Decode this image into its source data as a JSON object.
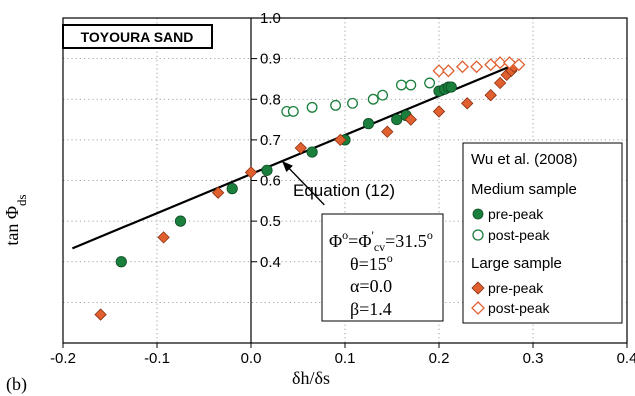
{
  "chart_data": {
    "type": "scatter",
    "title": "TOYOURA SAND",
    "xlabel": "δh/δs",
    "ylabel_main": "tan Φ",
    "ylabel_sub": "ds",
    "xlim": [
      -0.2,
      0.4
    ],
    "ylim": [
      0.2,
      1.0
    ],
    "x_ticks": [
      -0.2,
      -0.1,
      0.0,
      0.1,
      0.2,
      0.3,
      0.4
    ],
    "x_tick_labels": [
      "-0.2",
      "-0.1",
      "0.0",
      "0.1",
      "0.2",
      "0.3",
      "0.4"
    ],
    "y_ticks": [
      0.4,
      0.5,
      0.6,
      0.7,
      0.8,
      0.9,
      1.0
    ],
    "y_tick_labels": [
      "0.4",
      "0.5",
      "0.6",
      "0.7",
      "0.8",
      "0.9",
      "1.0"
    ],
    "grid": true,
    "panel_label": "(b)",
    "annotation": "Equation (12)",
    "annotation_arrow_tip": [
      0.033,
      0.648
    ],
    "annotation_arrow_tail": [
      0.078,
      0.54
    ],
    "line": {
      "name": "Equation (12)",
      "x": [
        -0.19,
        0.28
      ],
      "y": [
        0.433,
        0.885
      ]
    },
    "series": [
      {
        "name": "Medium pre-peak",
        "marker": "circle",
        "filled": true,
        "color": "#1a7f3c",
        "x": [
          -0.138,
          -0.075,
          -0.02,
          0.017,
          0.065,
          0.1,
          0.125,
          0.155,
          0.165,
          0.2,
          0.206,
          0.21,
          0.213
        ],
        "y": [
          0.4,
          0.5,
          0.58,
          0.625,
          0.67,
          0.7,
          0.74,
          0.75,
          0.76,
          0.82,
          0.825,
          0.83,
          0.83
        ]
      },
      {
        "name": "Medium post-peak",
        "marker": "circle",
        "filled": false,
        "color": "#1a7f3c",
        "x": [
          0.038,
          0.045,
          0.065,
          0.09,
          0.108,
          0.13,
          0.14,
          0.16,
          0.17,
          0.19
        ],
        "y": [
          0.77,
          0.77,
          0.78,
          0.785,
          0.79,
          0.8,
          0.81,
          0.835,
          0.835,
          0.84
        ]
      },
      {
        "name": "Large pre-peak",
        "marker": "diamond",
        "filled": true,
        "color": "#e06030",
        "x": [
          -0.16,
          -0.093,
          -0.035,
          0.0,
          0.053,
          0.095,
          0.145,
          0.17,
          0.2,
          0.23,
          0.255,
          0.265,
          0.272,
          0.277,
          0.28
        ],
        "y": [
          0.27,
          0.46,
          0.57,
          0.62,
          0.68,
          0.7,
          0.72,
          0.75,
          0.77,
          0.79,
          0.81,
          0.84,
          0.86,
          0.87,
          0.88
        ]
      },
      {
        "name": "Large post-peak",
        "marker": "diamond",
        "filled": false,
        "color": "#e06030",
        "x": [
          0.2,
          0.21,
          0.225,
          0.24,
          0.255,
          0.265,
          0.275,
          0.285
        ],
        "y": [
          0.87,
          0.87,
          0.88,
          0.88,
          0.885,
          0.89,
          0.89,
          0.885
        ]
      }
    ],
    "legend": {
      "placement": "right",
      "title": "Wu et al. (2008)",
      "group1": "Medium sample",
      "group2": "Large sample",
      "pre": "pre-peak",
      "post": "post-peak"
    },
    "parameters": {
      "line1_left": "Φ",
      "line1_sup1": "o",
      "line1_mid": "=Φ",
      "line1_prime": "'",
      "line1_sub": "cv",
      "line1_right": "=31.5",
      "line1_sup2": "o",
      "line2": "θ=15",
      "line2_sup": "o",
      "line3": "α=0.0",
      "line4": "β=1.4"
    }
  }
}
